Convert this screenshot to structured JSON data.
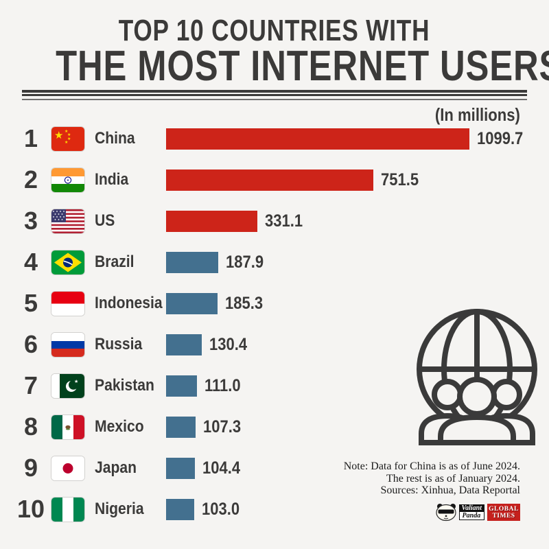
{
  "title": {
    "line1": "TOP 10 COUNTRIES WITH",
    "line2": "THE MOST INTERNET USERS"
  },
  "unit_label": "(In millions)",
  "chart_data": {
    "type": "bar",
    "orientation": "horizontal",
    "title": "Top 10 countries with the most internet users",
    "unit": "millions",
    "value_axis_max": 1099.7,
    "max_value": 1099.7,
    "legend": "none",
    "grid": "off",
    "categories": [
      "China",
      "India",
      "US",
      "Brazil",
      "Indonesia",
      "Russia",
      "Pakistan",
      "Mexico",
      "Japan",
      "Nigeria"
    ],
    "values": [
      1099.7,
      751.5,
      331.1,
      187.9,
      185.3,
      130.4,
      111.0,
      107.3,
      104.4,
      103.0
    ],
    "rows": [
      {
        "rank": "1",
        "country": "China",
        "value": 1099.7,
        "value_label": "1099.7",
        "bar_color": "red",
        "flag": "china"
      },
      {
        "rank": "2",
        "country": "India",
        "value": 751.5,
        "value_label": "751.5",
        "bar_color": "red",
        "flag": "india"
      },
      {
        "rank": "3",
        "country": "US",
        "value": 331.1,
        "value_label": "331.1",
        "bar_color": "red",
        "flag": "us"
      },
      {
        "rank": "4",
        "country": "Brazil",
        "value": 187.9,
        "value_label": "187.9",
        "bar_color": "blue",
        "flag": "brazil"
      },
      {
        "rank": "5",
        "country": "Indonesia",
        "value": 185.3,
        "value_label": "185.3",
        "bar_color": "blue",
        "flag": "indonesia"
      },
      {
        "rank": "6",
        "country": "Russia",
        "value": 130.4,
        "value_label": "130.4",
        "bar_color": "blue",
        "flag": "russia"
      },
      {
        "rank": "7",
        "country": "Pakistan",
        "value": 111.0,
        "value_label": "111.0",
        "bar_color": "blue",
        "flag": "pakistan"
      },
      {
        "rank": "8",
        "country": "Mexico",
        "value": 107.3,
        "value_label": "107.3",
        "bar_color": "blue",
        "flag": "mexico"
      },
      {
        "rank": "9",
        "country": "Japan",
        "value": 104.4,
        "value_label": "104.4",
        "bar_color": "blue",
        "flag": "japan"
      },
      {
        "rank": "10",
        "country": "Nigeria",
        "value": 103.0,
        "value_label": "103.0",
        "bar_color": "blue",
        "flag": "nigeria"
      }
    ]
  },
  "colors": {
    "red": "#cd2419",
    "blue": "#43708f",
    "text": "#3b3a39",
    "background": "#f5f4f2",
    "global_times_red": "#c5201d"
  },
  "icons": {
    "globe_people": "globe-with-people-icon",
    "panda": "valiant-panda-logo-icon"
  },
  "note": {
    "line1": "Note: Data for China is as of June 2024.",
    "line2": "The rest is as of January 2024.",
    "line3": "Sources: Xinhua, Data Reportal"
  },
  "logos": {
    "valiant": "Valiant",
    "panda": "Panda",
    "global_times_line1": "GLOBAL",
    "global_times_line2": "TIMES"
  }
}
